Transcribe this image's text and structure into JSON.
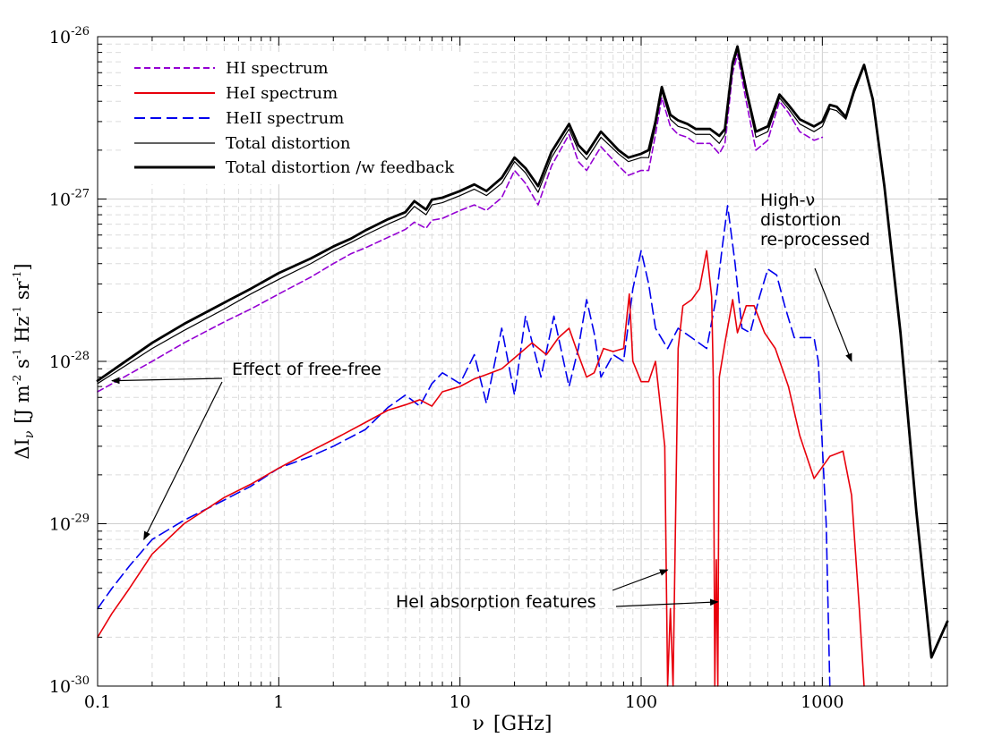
{
  "chart_data": {
    "type": "line",
    "xlabel_symbol": "ν",
    "xlabel_unit": "[GHz]",
    "ylabel_prefix": "ΔI",
    "ylabel_sub": "ν",
    "ylabel_unit_parts": [
      "[J m",
      "-2",
      " s",
      "-1",
      " Hz",
      "-1",
      " sr",
      "-1",
      "]"
    ],
    "xscale": "log",
    "yscale": "log",
    "xlim": [
      0.1,
      4900
    ],
    "ylim": [
      1e-30,
      1e-26
    ],
    "x_ticks": [
      {
        "value": 0.1,
        "label": "0.1"
      },
      {
        "value": 1,
        "label": "1"
      },
      {
        "value": 10,
        "label": "10"
      },
      {
        "value": 100,
        "label": "100"
      },
      {
        "value": 1000,
        "label": "1000"
      }
    ],
    "y_ticks": [
      {
        "value": 1e-30,
        "base": "10",
        "exp": "-30"
      },
      {
        "value": 1e-29,
        "base": "10",
        "exp": "-29"
      },
      {
        "value": 1e-28,
        "base": "10",
        "exp": "-28"
      },
      {
        "value": 1e-27,
        "base": "10",
        "exp": "-27"
      },
      {
        "value": 1e-26,
        "base": "10",
        "exp": "-26"
      }
    ],
    "grid": true,
    "legend_position": "top-left",
    "series": [
      {
        "name": "HI spectrum",
        "color": "#9400d3",
        "style": "dashed",
        "x": [
          0.1,
          0.2,
          0.3,
          0.5,
          0.7,
          1,
          1.5,
          2,
          2.5,
          3,
          4,
          5,
          5.6,
          6.5,
          7,
          8,
          10,
          12,
          14,
          17,
          20,
          23,
          27,
          32,
          40,
          45,
          50,
          60,
          75,
          85,
          100,
          110,
          120,
          130,
          145,
          160,
          180,
          200,
          240,
          270,
          290,
          320,
          340,
          380,
          430,
          500,
          580,
          650,
          750,
          900,
          1000
        ],
        "y": [
          6.5e-29,
          1e-28,
          1.3e-28,
          1.75e-28,
          2.1e-28,
          2.6e-28,
          3.3e-28,
          4e-28,
          4.6e-28,
          5e-28,
          5.8e-28,
          6.5e-28,
          7.2e-28,
          6.6e-28,
          7.4e-28,
          7.6e-28,
          8.5e-28,
          9.2e-28,
          8.5e-28,
          1.02e-27,
          1.5e-27,
          1.25e-27,
          9.2e-28,
          1.6e-27,
          2.5e-27,
          1.7e-27,
          1.5e-27,
          2.1e-27,
          1.6e-27,
          1.4e-27,
          1.5e-27,
          1.5e-27,
          2.5e-27,
          4.2e-27,
          2.8e-27,
          2.5e-27,
          2.4e-27,
          2.2e-27,
          2.2e-27,
          1.9e-27,
          2.2e-27,
          6e-27,
          7.8e-27,
          4e-27,
          2e-27,
          2.3e-27,
          4e-27,
          3.4e-27,
          2.6e-27,
          2.3e-27,
          2.4e-27
        ]
      },
      {
        "name": "HeI spectrum",
        "color": "#e8000b",
        "style": "solid",
        "x": [
          0.1,
          0.12,
          0.15,
          0.2,
          0.3,
          0.5,
          0.7,
          1,
          1.5,
          2,
          3,
          4,
          5,
          6,
          7,
          8,
          10,
          12,
          14,
          17,
          20,
          25,
          30,
          35,
          40,
          45,
          50,
          55,
          62,
          70,
          80,
          86,
          90,
          100,
          110,
          120,
          135,
          140,
          145,
          150,
          160,
          170,
          190,
          210,
          230,
          245,
          250,
          255,
          260,
          265,
          270,
          290,
          320,
          340,
          380,
          420,
          480,
          550,
          650,
          750,
          900,
          1100,
          1300,
          1450,
          1600,
          1700
        ],
        "y": [
          2e-30,
          2.8e-30,
          4e-30,
          6.5e-30,
          1e-29,
          1.45e-29,
          1.75e-29,
          2.2e-29,
          2.8e-29,
          3.3e-29,
          4.2e-29,
          5e-29,
          5.4e-29,
          5.8e-29,
          5.3e-29,
          6.5e-29,
          7e-29,
          7.8e-29,
          8.3e-29,
          9e-29,
          1.05e-28,
          1.3e-28,
          1.1e-28,
          1.4e-28,
          1.6e-28,
          1.1e-28,
          8e-29,
          8.5e-29,
          1.2e-28,
          1.15e-28,
          1.2e-28,
          2.6e-28,
          1e-28,
          7.5e-29,
          7.5e-29,
          1e-28,
          3e-29,
          1e-30,
          3e-30,
          1e-30,
          1.2e-28,
          2.2e-28,
          2.4e-28,
          2.8e-28,
          4.8e-28,
          2.5e-28,
          8e-29,
          1e-30,
          6e-30,
          1e-30,
          8e-29,
          1.3e-28,
          2.4e-28,
          1.5e-28,
          2.2e-28,
          2.2e-28,
          1.5e-28,
          1.2e-28,
          7e-29,
          3.5e-29,
          1.9e-29,
          2.6e-29,
          2.8e-29,
          1.5e-29,
          3e-30,
          1e-30
        ]
      },
      {
        "name": "HeII spectrum",
        "color": "#0000ee",
        "style": "long-dashed",
        "x": [
          0.1,
          0.12,
          0.15,
          0.2,
          0.3,
          0.5,
          0.7,
          1,
          1.5,
          2,
          3,
          4,
          5,
          6,
          7,
          8,
          10,
          12,
          14,
          17,
          20,
          23,
          28,
          33,
          40,
          45,
          50,
          55,
          60,
          70,
          80,
          90,
          100,
          110,
          120,
          140,
          160,
          190,
          230,
          260,
          280,
          300,
          330,
          360,
          400,
          450,
          500,
          560,
          620,
          700,
          800,
          900,
          950,
          1000,
          1050,
          1100
        ],
        "y": [
          3e-30,
          4e-30,
          5.5e-30,
          8e-30,
          1.05e-29,
          1.4e-29,
          1.7e-29,
          2.2e-29,
          2.6e-29,
          3e-29,
          3.8e-29,
          5.2e-29,
          6.2e-29,
          5.3e-29,
          7.3e-29,
          8.5e-29,
          7.3e-29,
          1.1e-28,
          5.5e-29,
          1.6e-28,
          6.2e-29,
          1.9e-28,
          8e-29,
          1.9e-28,
          7e-29,
          1.2e-28,
          2.4e-28,
          1.5e-28,
          8e-29,
          1.1e-28,
          1e-28,
          2.8e-28,
          4.8e-28,
          3e-28,
          1.6e-28,
          1.2e-28,
          1.6e-28,
          1.4e-28,
          1.2e-28,
          2.5e-28,
          5e-28,
          9.1e-28,
          4e-28,
          1.6e-28,
          1.5e-28,
          2.5e-28,
          3.7e-28,
          3.4e-28,
          2.2e-28,
          1.4e-28,
          1.4e-28,
          1.4e-28,
          1e-28,
          3e-29,
          1e-29,
          1e-30
        ]
      },
      {
        "name": "Total distortion",
        "color": "#000000",
        "style": "thin-solid",
        "x": [
          0.1,
          0.2,
          0.3,
          0.5,
          0.7,
          1,
          1.5,
          2,
          2.5,
          3,
          4,
          5,
          5.6,
          6.5,
          7,
          8,
          10,
          12,
          14,
          17,
          20,
          23,
          27,
          32,
          40,
          45,
          50,
          60,
          75,
          85,
          100,
          110,
          120,
          130,
          145,
          160,
          180,
          200,
          240,
          270,
          290,
          320,
          340,
          380,
          430,
          500,
          580,
          650,
          750,
          900,
          1000,
          1100,
          1200,
          1350,
          1500,
          1700,
          1900,
          2200,
          2700,
          3300,
          4000,
          4900
        ],
        "y": [
          7.3e-29,
          1.2e-28,
          1.55e-28,
          2.1e-28,
          2.6e-28,
          3.2e-28,
          4e-28,
          4.8e-28,
          5.4e-28,
          6e-28,
          7e-28,
          7.8e-28,
          9e-28,
          8e-28,
          9.2e-28,
          9.5e-28,
          1.05e-27,
          1.15e-27,
          1.05e-27,
          1.25e-27,
          1.7e-27,
          1.45e-27,
          1.1e-27,
          1.8e-27,
          2.7e-27,
          2e-27,
          1.75e-27,
          2.4e-27,
          1.9e-27,
          1.7e-27,
          1.8e-27,
          1.8e-27,
          2.8e-27,
          4.6e-27,
          3.1e-27,
          2.8e-27,
          2.7e-27,
          2.5e-27,
          2.5e-27,
          2.2e-27,
          2.5e-27,
          6.5e-27,
          8.3e-27,
          4.5e-27,
          2.4e-27,
          2.6e-27,
          4.2e-27,
          3.6e-27,
          2.9e-27,
          2.6e-27,
          2.8e-27,
          3.6e-27,
          3.5e-27,
          3.1e-27,
          4.5e-27,
          6.5e-27,
          4e-27,
          1.2e-27,
          1.5e-28,
          1.2e-29,
          1.5e-30,
          2.5e-30
        ]
      },
      {
        "name": "Total distortion /w feedback",
        "color": "#000000",
        "style": "thick-solid",
        "x": [
          0.1,
          0.2,
          0.3,
          0.5,
          0.7,
          1,
          1.5,
          2,
          2.5,
          3,
          4,
          5,
          5.6,
          6.5,
          7,
          8,
          10,
          12,
          14,
          17,
          20,
          23,
          27,
          32,
          40,
          45,
          50,
          60,
          75,
          85,
          100,
          110,
          120,
          130,
          145,
          160,
          180,
          200,
          240,
          270,
          290,
          320,
          340,
          380,
          430,
          500,
          580,
          650,
          750,
          900,
          1000,
          1100,
          1200,
          1350,
          1500,
          1700,
          1900,
          2200,
          2700,
          3300,
          4000,
          4900
        ],
        "y": [
          7.6e-29,
          1.3e-28,
          1.7e-28,
          2.3e-28,
          2.8e-28,
          3.5e-28,
          4.3e-28,
          5.1e-28,
          5.7e-28,
          6.4e-28,
          7.5e-28,
          8.3e-28,
          9.7e-28,
          8.6e-28,
          9.9e-28,
          1.02e-27,
          1.12e-27,
          1.23e-27,
          1.12e-27,
          1.35e-27,
          1.8e-27,
          1.55e-27,
          1.2e-27,
          1.95e-27,
          2.9e-27,
          2.15e-27,
          1.9e-27,
          2.6e-27,
          2e-27,
          1.8e-27,
          1.9e-27,
          2e-27,
          3e-27,
          4.9e-27,
          3.3e-27,
          3.05e-27,
          2.9e-27,
          2.7e-27,
          2.7e-27,
          2.45e-27,
          2.7e-27,
          6.9e-27,
          8.7e-27,
          4.7e-27,
          2.6e-27,
          2.8e-27,
          4.4e-27,
          3.8e-27,
          3.1e-27,
          2.8e-27,
          3e-27,
          3.8e-27,
          3.7e-27,
          3.2e-27,
          4.7e-27,
          6.7e-27,
          4.1e-27,
          1.2e-27,
          1.5e-28,
          1.2e-29,
          1.5e-30,
          2.5e-30
        ]
      }
    ],
    "annotations": [
      {
        "id": "effect-of-free-free",
        "text": "Effect of free-free",
        "arrow_targets": [
          [
            0.12,
            7.6e-29
          ],
          [
            0.18,
            8e-30
          ]
        ]
      },
      {
        "id": "hei-absorption",
        "text": "HeI absorption features",
        "arrow_targets": [
          [
            140,
            5.2e-30
          ],
          [
            265,
            3.3e-30
          ]
        ]
      },
      {
        "id": "high-nu",
        "lines": [
          "High-ν",
          "distortion",
          "re-processed"
        ],
        "arrow_targets": [
          [
            1450,
            1e-28
          ]
        ]
      }
    ]
  }
}
